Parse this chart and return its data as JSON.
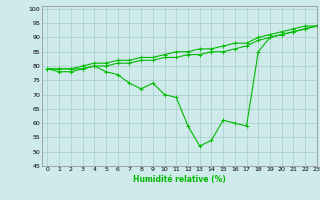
{
  "xlabel": "Humidité relative (%)",
  "background_color": "#ceeaea",
  "line_color": "#00bb00",
  "grid_color": "#aacaca",
  "xlim": [
    -0.5,
    23
  ],
  "ylim": [
    45,
    101
  ],
  "yticks": [
    45,
    50,
    55,
    60,
    65,
    70,
    75,
    80,
    85,
    90,
    95,
    100
  ],
  "xticks": [
    0,
    1,
    2,
    3,
    4,
    5,
    6,
    7,
    8,
    9,
    10,
    11,
    12,
    13,
    14,
    15,
    16,
    17,
    18,
    19,
    20,
    21,
    22,
    23
  ],
  "line1": [
    79,
    78,
    78,
    79,
    80,
    78,
    77,
    74,
    72,
    74,
    70,
    69,
    59,
    52,
    54,
    61,
    60,
    59,
    85,
    90,
    91,
    92,
    93,
    94
  ],
  "line2": [
    79,
    79,
    79,
    79,
    80,
    80,
    81,
    81,
    82,
    82,
    83,
    83,
    84,
    84,
    85,
    85,
    86,
    87,
    89,
    90,
    91,
    92,
    93,
    94
  ],
  "line3": [
    79,
    79,
    79,
    80,
    81,
    81,
    82,
    82,
    83,
    83,
    84,
    85,
    85,
    86,
    86,
    87,
    88,
    88,
    90,
    91,
    92,
    93,
    94,
    94
  ]
}
